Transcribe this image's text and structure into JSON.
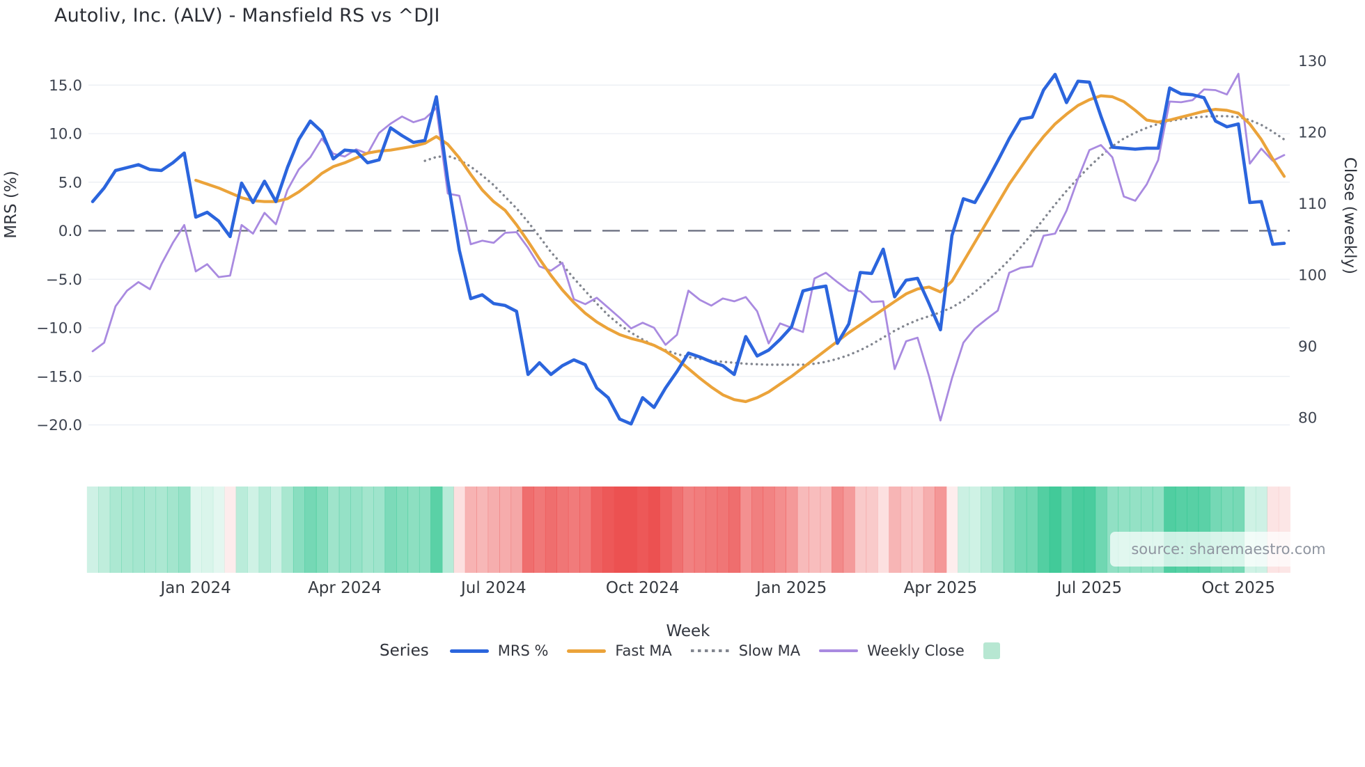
{
  "title": "Autoliv, Inc. (ALV) - Mansfield RS vs ^DJI",
  "source_watermark": "source: sharemaestro.com",
  "legend": {
    "label": "Series",
    "items": [
      {
        "label": "MRS %",
        "swatch": "line",
        "color": "#2b65dd"
      },
      {
        "label": "Fast MA",
        "swatch": "line",
        "color": "#eba33a"
      },
      {
        "label": "Slow MA",
        "swatch": "dotted",
        "color": "#82868f"
      },
      {
        "label": "Weekly Close",
        "swatch": "line-thin",
        "color": "#a98ae0"
      },
      {
        "label": "",
        "swatch": "square",
        "color": "#b7e7d2"
      }
    ]
  },
  "colors": {
    "mrs_blue": "#2b65dd",
    "fast_ma_orange": "#eba33a",
    "slow_ma_gray": "#82868f",
    "weekly_close_purple": "#a98ae0",
    "heat_green": "#2dc48e",
    "heat_red": "#ec5151",
    "gridline": "#e9edf3",
    "zero_line": "#51566b",
    "tick_text": "#3e4450",
    "legend_square_teal": "#b7e7d2"
  },
  "chart_data": {
    "type": "line",
    "title": "Autoliv, Inc. (ALV) - Mansfield RS vs ^DJI",
    "x_axis": {
      "title": "Week",
      "unit": "week-index",
      "n_points": 105,
      "range": [
        0,
        104
      ],
      "ticks": [
        {
          "label": "Jan 2024",
          "week": 9
        },
        {
          "label": "Apr 2024",
          "week": 22
        },
        {
          "label": "Jul 2024",
          "week": 35
        },
        {
          "label": "Oct 2024",
          "week": 48
        },
        {
          "label": "Jan 2025",
          "week": 61
        },
        {
          "label": "Apr 2025",
          "week": 74
        },
        {
          "label": "Jul 2025",
          "week": 87
        },
        {
          "label": "Oct 2025",
          "week": 100
        }
      ]
    },
    "y_axis_left": {
      "title": "MRS (%)",
      "tick_values": [
        15,
        10,
        5,
        0,
        -5,
        -10,
        -15,
        -20
      ],
      "tick_labels": [
        "15.0",
        "10.0",
        "5.0",
        "0.0",
        "−5.0",
        "−10.0",
        "−15.0",
        "−20.0"
      ],
      "range": [
        -21.5,
        17.5
      ],
      "grid": true
    },
    "y_axis_right": {
      "title": "Close (weekly)",
      "tick_values": [
        130,
        120,
        110,
        100,
        90,
        80
      ],
      "tick_labels": [
        "130",
        "120",
        "110",
        "100",
        "90",
        "80"
      ],
      "range": [
        76,
        132
      ],
      "grid": false
    },
    "zero_line": {
      "axis": "left",
      "value": 0,
      "style": "long-dash"
    },
    "legend_position": "bottom",
    "series": [
      {
        "name": "MRS %",
        "axis": "left",
        "color": "#2b65dd",
        "style": "solid",
        "width": 4.6,
        "values": [
          3.0,
          4.4,
          6.2,
          6.5,
          6.8,
          6.3,
          6.2,
          7.0,
          8.0,
          1.4,
          1.9,
          1.0,
          -0.6,
          4.9,
          2.9,
          5.1,
          3.0,
          6.5,
          9.4,
          11.3,
          10.2,
          7.4,
          8.3,
          8.2,
          7.0,
          7.3,
          10.6,
          9.8,
          9.1,
          9.3,
          13.8,
          5.2,
          -2.0,
          -7.0,
          -6.6,
          -7.5,
          -7.7,
          -8.3,
          -14.8,
          -13.6,
          -14.8,
          -13.9,
          -13.3,
          -13.8,
          -16.2,
          -17.2,
          -19.4,
          -19.9,
          -17.2,
          -18.2,
          -16.2,
          -14.5,
          -12.6,
          -13.0,
          -13.5,
          -13.9,
          -14.8,
          -10.9,
          -12.9,
          -12.3,
          -11.2,
          -9.9,
          -6.2,
          -5.9,
          -5.7,
          -11.6,
          -9.6,
          -4.3,
          -4.4,
          -1.9,
          -6.8,
          -5.1,
          -4.9,
          -7.5,
          -10.2,
          -0.5,
          3.3,
          2.9,
          5.0,
          7.2,
          9.5,
          11.5,
          11.7,
          14.5,
          16.1,
          13.2,
          15.4,
          15.3,
          11.8,
          8.6,
          8.5,
          8.4,
          8.5,
          8.5,
          14.7,
          14.1,
          14.0,
          13.7,
          11.3,
          10.7,
          11.0,
          2.9,
          3.0,
          -1.4,
          -1.3
        ]
      },
      {
        "name": "Fast MA",
        "axis": "left",
        "color": "#eba33a",
        "style": "solid",
        "width": 4.2,
        "values": [
          null,
          null,
          null,
          null,
          null,
          null,
          null,
          null,
          null,
          5.2,
          4.8,
          4.4,
          3.9,
          3.4,
          3.1,
          3.0,
          3.0,
          3.3,
          4.0,
          4.9,
          5.9,
          6.6,
          7.0,
          7.5,
          8.0,
          8.2,
          8.3,
          8.5,
          8.7,
          9.0,
          9.7,
          8.9,
          7.5,
          5.8,
          4.2,
          3.0,
          2.1,
          0.6,
          -1.1,
          -2.9,
          -4.6,
          -6.1,
          -7.4,
          -8.5,
          -9.4,
          -10.1,
          -10.7,
          -11.1,
          -11.4,
          -11.8,
          -12.4,
          -13.2,
          -14.2,
          -15.2,
          -16.1,
          -16.9,
          -17.4,
          -17.6,
          -17.2,
          -16.6,
          -15.8,
          -15.0,
          -14.1,
          -13.2,
          -12.3,
          -11.4,
          -10.5,
          -9.7,
          -8.9,
          -8.1,
          -7.3,
          -6.5,
          -6.0,
          -5.8,
          -6.3,
          -5.2,
          -3.2,
          -1.2,
          0.8,
          2.8,
          4.8,
          6.5,
          8.2,
          9.7,
          11.0,
          12.0,
          12.9,
          13.5,
          13.9,
          13.8,
          13.3,
          12.4,
          11.4,
          11.2,
          11.4,
          11.7,
          12.0,
          12.3,
          12.5,
          12.4,
          12.1,
          11.0,
          9.4,
          7.4,
          5.6
        ]
      },
      {
        "name": "Slow MA",
        "axis": "left",
        "color": "#82868f",
        "style": "dotted",
        "width": 3.4,
        "values": [
          null,
          null,
          null,
          null,
          null,
          null,
          null,
          null,
          null,
          null,
          null,
          null,
          null,
          null,
          null,
          null,
          null,
          null,
          null,
          null,
          null,
          null,
          null,
          null,
          null,
          null,
          null,
          null,
          null,
          7.2,
          7.6,
          7.7,
          7.3,
          6.6,
          5.7,
          4.7,
          3.5,
          2.3,
          0.9,
          -0.6,
          -2.2,
          -3.5,
          -4.9,
          -6.2,
          -7.5,
          -8.7,
          -9.7,
          -10.5,
          -11.2,
          -11.8,
          -12.3,
          -12.7,
          -13.0,
          -13.2,
          -13.4,
          -13.5,
          -13.6,
          -13.7,
          -13.75,
          -13.8,
          -13.8,
          -13.8,
          -13.8,
          -13.7,
          -13.5,
          -13.2,
          -12.8,
          -12.3,
          -11.7,
          -11.0,
          -10.3,
          -9.7,
          -9.2,
          -8.8,
          -8.4,
          -7.9,
          -7.2,
          -6.3,
          -5.3,
          -4.2,
          -3.0,
          -1.7,
          -0.3,
          1.2,
          2.7,
          4.1,
          5.4,
          6.6,
          7.7,
          8.7,
          9.5,
          10.1,
          10.6,
          11.0,
          11.3,
          11.5,
          11.65,
          11.75,
          11.8,
          11.8,
          11.7,
          11.4,
          10.9,
          10.2,
          9.4
        ]
      },
      {
        "name": "Weekly Close",
        "axis": "right",
        "color": "#a98ae0",
        "style": "solid",
        "width": 2.8,
        "values": [
          89.3,
          90.5,
          95.6,
          97.8,
          99.0,
          98.0,
          101.5,
          104.5,
          107.0,
          100.5,
          101.5,
          99.7,
          99.9,
          107.0,
          105.8,
          108.7,
          107.1,
          111.9,
          114.8,
          116.5,
          119.1,
          117.0,
          116.6,
          117.6,
          117.0,
          119.9,
          121.2,
          122.2,
          121.4,
          121.9,
          123.4,
          111.4,
          111.1,
          104.3,
          104.8,
          104.5,
          105.9,
          106.0,
          103.8,
          101.2,
          100.6,
          101.7,
          96.6,
          95.9,
          96.8,
          95.4,
          94.0,
          92.5,
          93.3,
          92.6,
          90.2,
          91.6,
          97.8,
          96.5,
          95.7,
          96.7,
          96.3,
          96.9,
          94.9,
          90.4,
          93.2,
          92.6,
          92.0,
          99.5,
          100.3,
          99.0,
          97.8,
          97.7,
          96.2,
          96.3,
          86.8,
          90.7,
          91.2,
          85.8,
          79.6,
          85.5,
          90.5,
          92.5,
          93.8,
          95.0,
          100.3,
          101.0,
          101.2,
          105.5,
          105.8,
          109.0,
          113.5,
          117.5,
          118.2,
          116.5,
          111.0,
          110.4,
          112.7,
          116.1,
          124.3,
          124.2,
          124.5,
          126.0,
          125.9,
          125.3,
          128.2,
          115.6,
          117.7,
          116.0,
          116.8
        ]
      }
    ],
    "heatmap_strip": {
      "basis": "MRS %",
      "description": "weekly cells below the plot tinted green for positive MRS and red for negative MRS, intensity proportional to magnitude",
      "positive_color": "#2dc48e",
      "negative_color": "#ec5151"
    }
  }
}
